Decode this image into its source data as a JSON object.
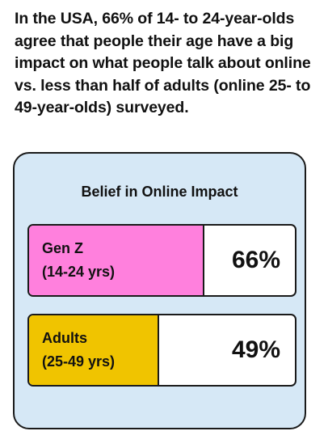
{
  "headline": "In the USA, 66% of 14- to 24-year-olds agree that people their age have a big impact on what people talk about online vs. less than half of adults (online 25- to 49-year-olds) surveyed.",
  "chart_data": {
    "type": "bar",
    "title": "Belief in Online Impact",
    "categories": [
      "Gen Z",
      "Adults"
    ],
    "category_sublabels": [
      "(14-24 yrs)",
      "(25-49 yrs)"
    ],
    "values": [
      66,
      49
    ],
    "value_labels": [
      "66%",
      "49%"
    ],
    "colors": [
      "#ff80dd",
      "#f0c400"
    ],
    "background_color": "#d6e8f6"
  }
}
